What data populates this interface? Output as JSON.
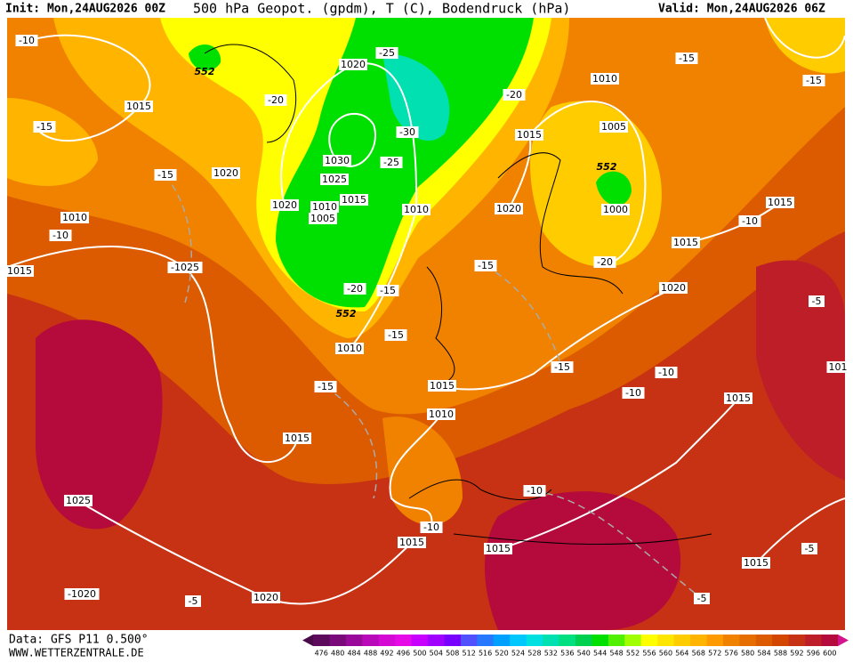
{
  "header": {
    "init": "Init: Mon,24AUG2026 00Z",
    "title": "500 hPa Geopot. (gpdm), T (C), Bodendruck (hPa)",
    "valid": "Valid: Mon,24AUG2026 06Z"
  },
  "footer": {
    "data": "Data: GFS P11 0.500°",
    "site": "WWW.WETTERZENTRALE.DE"
  },
  "colorbar": {
    "labels": [
      476,
      480,
      484,
      488,
      492,
      496,
      500,
      504,
      508,
      512,
      516,
      520,
      524,
      528,
      532,
      536,
      540,
      544,
      548,
      552,
      556,
      560,
      564,
      568,
      572,
      576,
      580,
      584,
      588,
      592,
      596,
      600
    ],
    "colors": [
      "#5c0a5c",
      "#7a0a7a",
      "#9a0a9a",
      "#b80ab8",
      "#d40ad4",
      "#e60ae6",
      "#c800ff",
      "#a000ff",
      "#7800ff",
      "#5050ff",
      "#2878ff",
      "#00a0ff",
      "#00c8ff",
      "#00e0e0",
      "#00e0b0",
      "#00e080",
      "#00d050",
      "#00e000",
      "#50f000",
      "#a0ff00",
      "#ffff00",
      "#ffe600",
      "#ffcc00",
      "#ffb400",
      "#ff9b00",
      "#f08200",
      "#e66e00",
      "#dc5a00",
      "#d24600",
      "#c83214",
      "#be1e28",
      "#b40a3c"
    ]
  },
  "map": {
    "labels": [
      "-10",
      "552",
      "-25",
      "1020",
      "-20",
      "1015",
      "-15",
      "-30",
      "-20",
      "1010",
      "-15",
      "-15",
      "1005",
      "1015",
      "552",
      "-15",
      "1020",
      "1030",
      "-25",
      "1025",
      "1015",
      "1020",
      "1010",
      "1005",
      "1010",
      "1020",
      "1000",
      "1010",
      "-10",
      "1015",
      "-10",
      "1015",
      "-20",
      "1015",
      "-1025",
      "-15",
      "-20",
      "-15",
      "1020",
      "552",
      "-5",
      "1010",
      "-15",
      "-15",
      "-10",
      "101",
      "-15",
      "1015",
      "-10",
      "1015",
      "1010",
      "1015",
      "-10",
      "1025",
      "-10",
      "1015",
      "1015",
      "-5",
      "1015",
      "-1020",
      "1020",
      "-5",
      "-5"
    ]
  }
}
